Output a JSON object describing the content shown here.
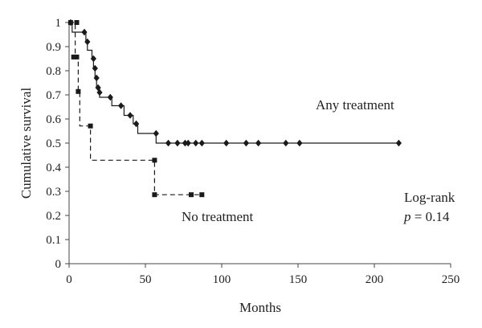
{
  "chart_data": {
    "type": "line",
    "title": "",
    "xlabel": "Months",
    "ylabel": "Cumulative survival",
    "xlim": [
      0,
      250
    ],
    "ylim": [
      0,
      1
    ],
    "xticks": [
      0,
      50,
      100,
      150,
      200,
      250
    ],
    "yticks": [
      0,
      0.1,
      0.2,
      0.3,
      0.4,
      0.5,
      0.6,
      0.7,
      0.8,
      0.9,
      1
    ],
    "grid": false,
    "series": [
      {
        "name": "Any treatment",
        "line_style": "solid",
        "marker": "diamond",
        "steps": [
          [
            0,
            1
          ],
          [
            2,
            0.96
          ],
          [
            11,
            0.92
          ],
          [
            12,
            0.885
          ],
          [
            15,
            0.85
          ],
          [
            16,
            0.81
          ],
          [
            17,
            0.77
          ],
          [
            18,
            0.73
          ],
          [
            20,
            0.69
          ],
          [
            28,
            0.655
          ],
          [
            36,
            0.615
          ],
          [
            42,
            0.58
          ],
          [
            45,
            0.54
          ],
          [
            57,
            0.5
          ],
          [
            216,
            0.5
          ]
        ],
        "censored": [
          [
            1,
            1
          ],
          [
            10,
            0.96
          ],
          [
            12,
            0.92
          ],
          [
            16,
            0.85
          ],
          [
            17,
            0.81
          ],
          [
            18,
            0.77
          ],
          [
            19,
            0.73
          ],
          [
            20,
            0.71
          ],
          [
            27,
            0.69
          ],
          [
            34,
            0.655
          ],
          [
            40,
            0.615
          ],
          [
            44,
            0.58
          ],
          [
            57,
            0.54
          ],
          [
            65,
            0.5
          ],
          [
            71,
            0.5
          ],
          [
            76,
            0.5
          ],
          [
            78,
            0.5
          ],
          [
            83,
            0.5
          ],
          [
            87,
            0.5
          ],
          [
            103,
            0.5
          ],
          [
            116,
            0.5
          ],
          [
            124,
            0.5
          ],
          [
            142,
            0.5
          ],
          [
            151,
            0.5
          ],
          [
            216,
            0.5
          ]
        ]
      },
      {
        "name": "No treatment",
        "line_style": "dashed",
        "marker": "square",
        "steps": [
          [
            0,
            1
          ],
          [
            4,
            0.857
          ],
          [
            6,
            0.714
          ],
          [
            7,
            0.571
          ],
          [
            14,
            0.429
          ],
          [
            56,
            0.286
          ],
          [
            87,
            0.286
          ]
        ],
        "censored": [
          [
            1,
            1
          ],
          [
            5,
            1
          ],
          [
            3,
            0.857
          ],
          [
            5,
            0.857
          ],
          [
            6,
            0.714
          ],
          [
            14,
            0.571
          ],
          [
            56,
            0.429
          ],
          [
            56,
            0.286
          ],
          [
            80,
            0.286
          ],
          [
            87,
            0.286
          ]
        ]
      }
    ],
    "annotations": {
      "any_treatment": "Any treatment",
      "no_treatment": "No treatment",
      "log_rank": "Log-rank",
      "p_symbol": "p",
      "p_value": " = 0.14"
    },
    "colors": {
      "series": "#1a1a1a",
      "axis": "#444444",
      "text": "#222222"
    }
  }
}
